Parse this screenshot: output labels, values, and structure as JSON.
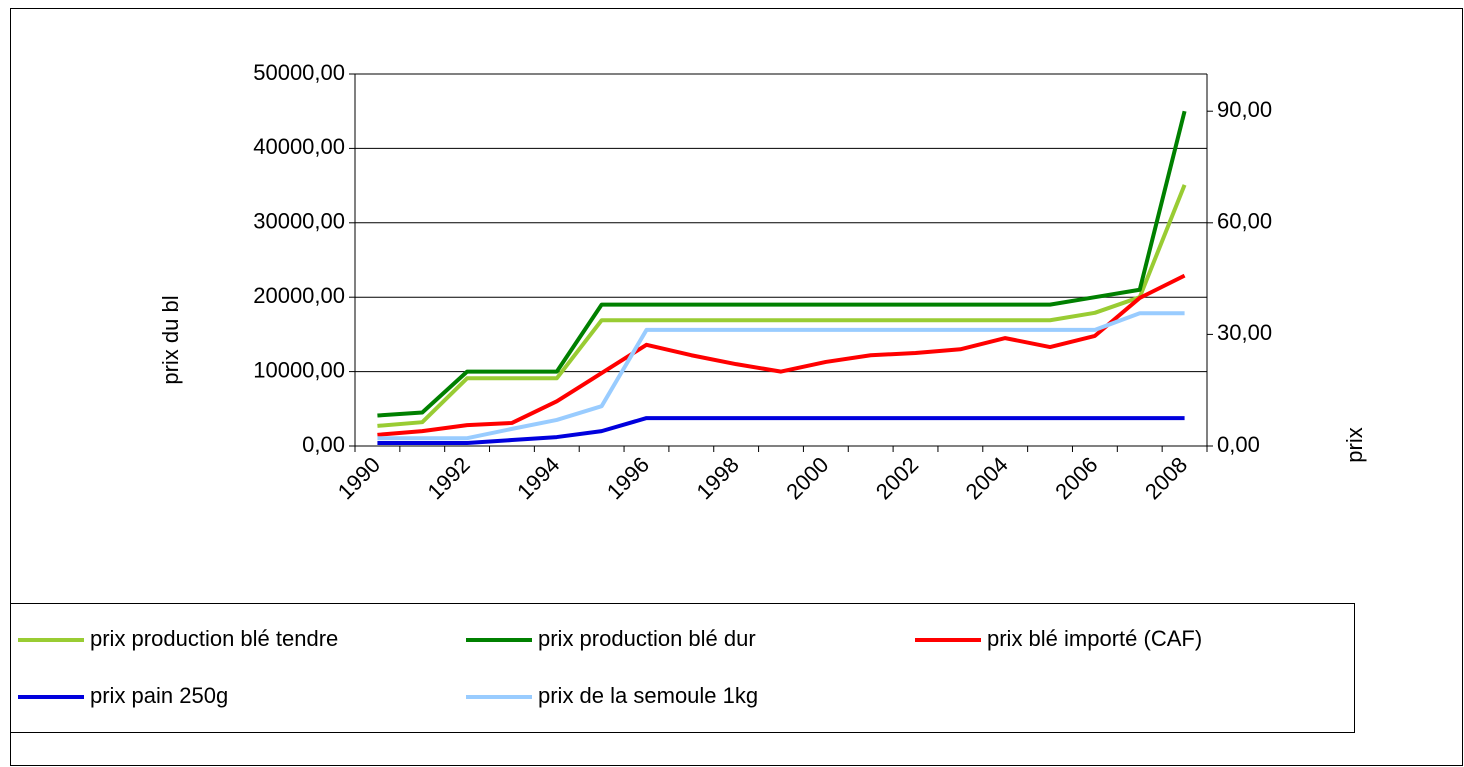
{
  "chart_data": {
    "type": "line",
    "ylabel": "prix du bl",
    "y2label": "prix",
    "categories": [
      "1990",
      null,
      "1992",
      null,
      "1994",
      null,
      "1996",
      null,
      "1998",
      null,
      "2000",
      null,
      "2002",
      null,
      "2004",
      null,
      "2006",
      null,
      "2008"
    ],
    "ylim": [
      0,
      50000
    ],
    "yticks": [
      {
        "value": 0,
        "label": "0,00"
      },
      {
        "value": 10000,
        "label": "10000,00"
      },
      {
        "value": 20000,
        "label": "20000,00"
      },
      {
        "value": 30000,
        "label": "30000,00"
      },
      {
        "value": 40000,
        "label": "40000,00"
      },
      {
        "value": 50000,
        "label": "50000,00"
      }
    ],
    "y2lim": [
      0,
      100
    ],
    "y2ticks": [
      {
        "value": 0,
        "label": "0,00"
      },
      {
        "value": 30,
        "label": "30,00"
      },
      {
        "value": 60,
        "label": "60,00"
      },
      {
        "value": 90,
        "label": "90,00"
      }
    ],
    "grid": true,
    "legend": "bottom",
    "series": [
      {
        "name": "prix production blé tendre",
        "color": "#99cc33",
        "values": [
          2700,
          3200,
          9100,
          9100,
          9100,
          16900,
          16900,
          16900,
          16900,
          16900,
          16900,
          16900,
          16900,
          16900,
          16900,
          16900,
          17900,
          20000,
          35100
        ]
      },
      {
        "name": "prix production blé dur",
        "color": "#008000",
        "values": [
          4100,
          4500,
          10000,
          10000,
          10000,
          19000,
          19000,
          19000,
          19000,
          19000,
          19000,
          19000,
          19000,
          19000,
          19000,
          19000,
          20000,
          21000,
          45000
        ]
      },
      {
        "name": "prix blé importé (CAF)",
        "color": "#ff0000",
        "values": [
          1500,
          2000,
          2800,
          3100,
          6000,
          9800,
          13600,
          12200,
          11000,
          10000,
          11300,
          12200,
          12500,
          13000,
          14500,
          13300,
          14800,
          19900,
          22900
        ]
      },
      {
        "name": "prix pain 250g",
        "color": "#0000dd",
        "axis": "y2",
        "values": [
          0.8,
          0.8,
          0.8,
          1.6,
          2.4,
          4,
          7.5,
          7.5,
          7.5,
          7.5,
          7.5,
          7.5,
          7.5,
          7.5,
          7.5,
          7.5,
          7.5,
          7.5,
          7.5
        ]
      },
      {
        "name": "prix de la semoule 1kg",
        "color": "#99ccff",
        "axis": "y2",
        "values": [
          2.1,
          2.1,
          2.1,
          4.6,
          7,
          10.7,
          31.2,
          31.2,
          31.2,
          31.2,
          31.2,
          31.2,
          31.2,
          31.2,
          31.2,
          31.2,
          31.2,
          35.7,
          35.7
        ]
      }
    ]
  }
}
